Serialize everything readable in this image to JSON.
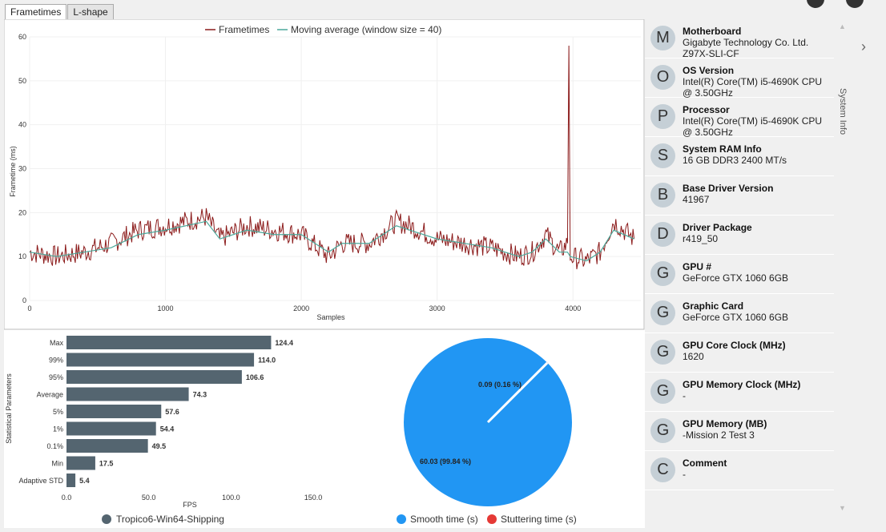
{
  "tabs": [
    {
      "label": "Frametimes"
    },
    {
      "label": "L-shape"
    }
  ],
  "frametime_chart": {
    "legend": {
      "frametimes": "Frametimes",
      "moving_avg": "Moving average (window size = 40)"
    },
    "ylabel": "Frametime (ms)",
    "xlabel": "Samples",
    "yticks": [
      "0",
      "10",
      "20",
      "30",
      "40",
      "50",
      "60"
    ],
    "xticks": [
      "0",
      "1000",
      "2000",
      "3000",
      "4000"
    ]
  },
  "bar_chart": {
    "ylabel": "Statistical Parameters",
    "xlabel": "FPS",
    "xticks": [
      "0.0",
      "50.0",
      "100.0",
      "150.0"
    ],
    "legend": "Tropico6-Win64-Shipping"
  },
  "pie_chart": {
    "labels": {
      "smooth": "60.03 (99.84 %)",
      "stutter": "0.09 (0.16 %)"
    },
    "legend": {
      "smooth": "Smooth time (s)",
      "stutter": "Stuttering time (s)"
    }
  },
  "chart_data": [
    {
      "type": "line",
      "title": "",
      "xlabel": "Samples",
      "ylabel": "Frametime (ms)",
      "xlim": [
        0,
        4500
      ],
      "ylim": [
        0,
        60
      ],
      "series": [
        {
          "name": "Frametimes",
          "x": [
            0,
            200,
            400,
            600,
            800,
            1000,
            1300,
            1400,
            1600,
            1800,
            2000,
            2200,
            2300,
            2500,
            2700,
            2800,
            3000,
            3200,
            3400,
            3600,
            3700,
            3800,
            3900,
            3960,
            3970,
            3980,
            4100,
            4200,
            4300,
            4450
          ],
          "y": [
            11,
            10,
            11,
            13,
            16,
            17,
            19,
            14,
            17,
            16,
            15,
            10,
            13,
            13,
            18,
            17,
            14,
            13,
            12,
            10,
            11,
            15,
            11,
            13,
            58,
            10,
            9,
            11,
            18,
            14
          ]
        },
        {
          "name": "Moving average (window size = 40)",
          "x": [
            0,
            200,
            400,
            600,
            800,
            1000,
            1300,
            1400,
            1600,
            1800,
            2000,
            2200,
            2300,
            2500,
            2700,
            2800,
            3000,
            3200,
            3400,
            3600,
            3700,
            3800,
            3900,
            3960,
            3980,
            4100,
            4200,
            4300,
            4450
          ],
          "y": [
            11,
            10,
            11,
            12,
            15,
            16,
            18,
            14,
            16,
            15,
            15,
            11,
            13,
            13,
            17,
            16,
            14,
            13,
            12,
            10,
            11,
            14,
            11,
            11,
            10,
            9,
            11,
            16,
            14
          ]
        }
      ]
    },
    {
      "type": "bar",
      "orientation": "horizontal",
      "xlabel": "FPS",
      "ylabel": "Statistical Parameters",
      "xlim": [
        0,
        150
      ],
      "categories": [
        "Max",
        "99%",
        "95%",
        "Average",
        "5%",
        "1%",
        "0.1%",
        "Min",
        "Adaptive STD"
      ],
      "values": [
        124.4,
        114.0,
        106.6,
        74.3,
        57.6,
        54.4,
        49.5,
        17.5,
        5.4
      ],
      "value_labels": [
        "124.4",
        "114.0",
        "106.6",
        "74.3",
        "57.6",
        "54.4",
        "49.5",
        "17.5",
        "5.4"
      ],
      "series_name": "Tropico6-Win64-Shipping",
      "color": "#546570"
    },
    {
      "type": "pie",
      "categories": [
        "Smooth time (s)",
        "Stuttering time (s)"
      ],
      "values": [
        60.03,
        0.09
      ],
      "colors": [
        "#2196f3",
        "#e53935"
      ]
    }
  ],
  "system_info": {
    "title": "System Info",
    "items": [
      {
        "initial": "M",
        "title": "Motherboard",
        "value": [
          "Gigabyte Technology Co. Ltd.",
          "Z97X-SLI-CF"
        ]
      },
      {
        "initial": "O",
        "title": "OS Version",
        "value": [
          "Intel(R) Core(TM) i5-4690K CPU",
          "@ 3.50GHz"
        ]
      },
      {
        "initial": "P",
        "title": "Processor",
        "value": [
          "Intel(R) Core(TM) i5-4690K CPU",
          "@ 3.50GHz"
        ]
      },
      {
        "initial": "S",
        "title": "System RAM Info",
        "value": [
          "16 GB DDR3 2400 MT/s"
        ]
      },
      {
        "initial": "B",
        "title": "Base Driver Version",
        "value": [
          "41967"
        ]
      },
      {
        "initial": "D",
        "title": "Driver Package",
        "value": [
          "r419_50"
        ]
      },
      {
        "initial": "G",
        "title": "GPU #",
        "value": [
          "GeForce GTX 1060 6GB"
        ]
      },
      {
        "initial": "G",
        "title": "Graphic Card",
        "value": [
          "GeForce GTX 1060 6GB"
        ]
      },
      {
        "initial": "G",
        "title": "GPU Core Clock (MHz)",
        "value": [
          "1620"
        ]
      },
      {
        "initial": "G",
        "title": "GPU Memory Clock (MHz)",
        "value": [
          "-"
        ]
      },
      {
        "initial": "G",
        "title": "GPU Memory (MB)",
        "value": [
          "-Mission 2 Test 3"
        ]
      },
      {
        "initial": "C",
        "title": "Comment",
        "value": [
          "-"
        ]
      }
    ]
  }
}
